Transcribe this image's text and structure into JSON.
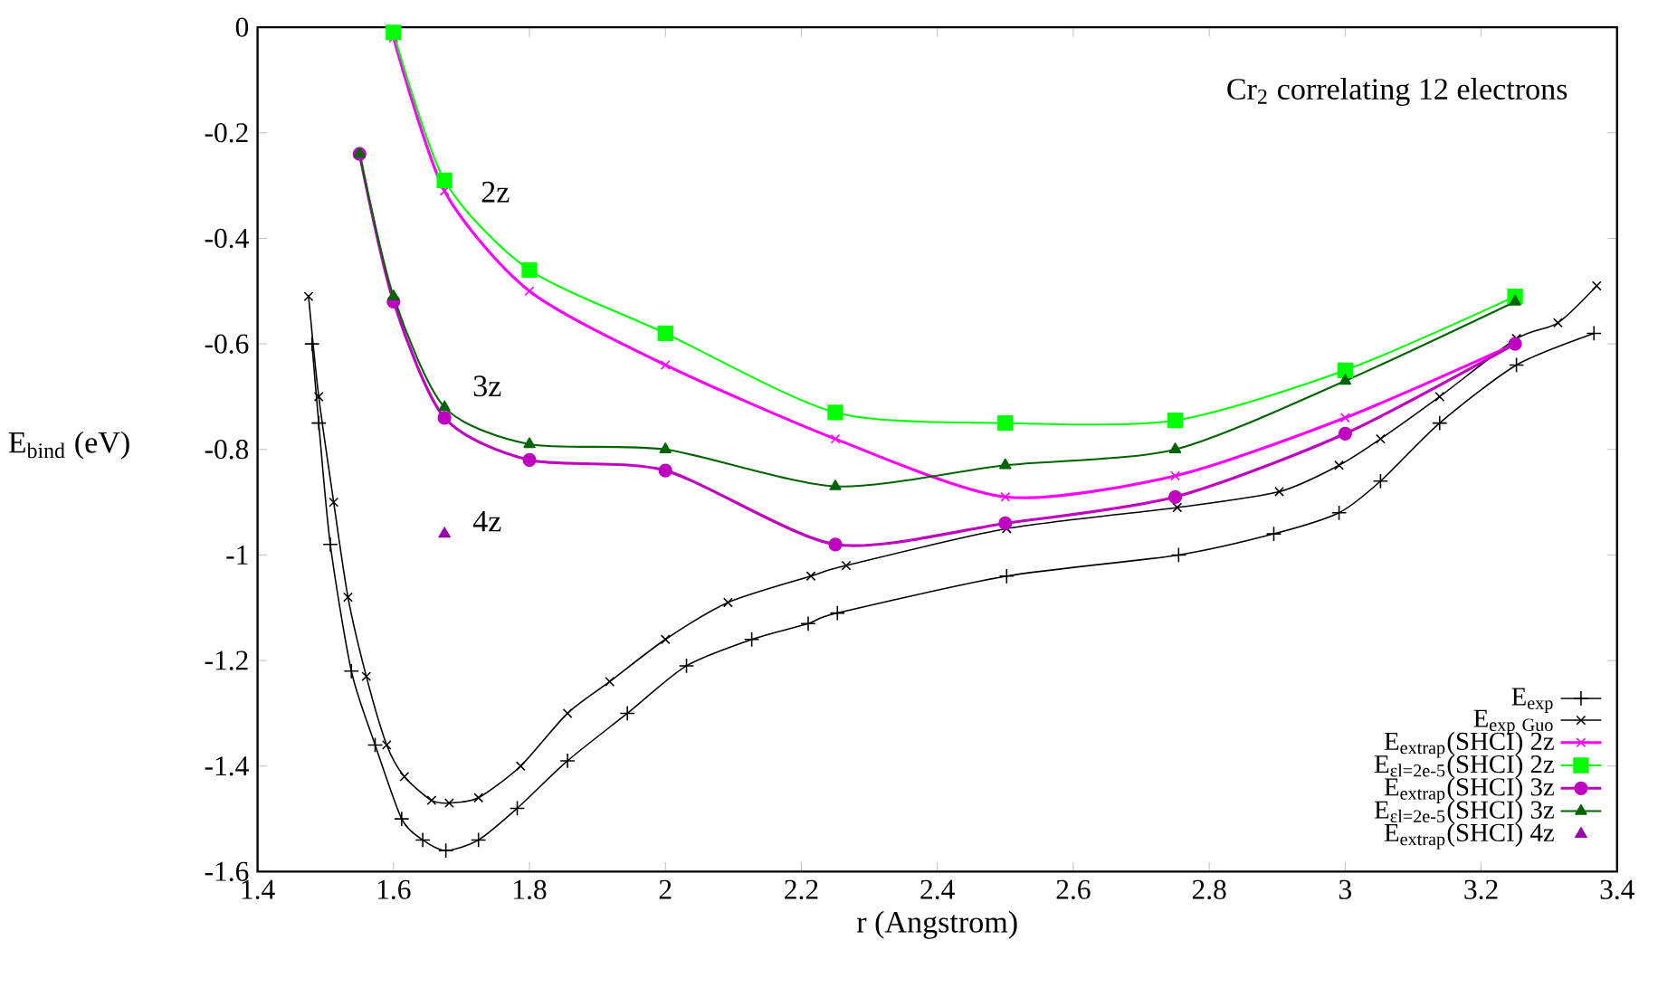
{
  "chart_data": {
    "type": "line",
    "xlabel": "r (Angstrom)",
    "ylabel": "E$_{bind}$ (eV)",
    "xlim": [
      1.4,
      3.4
    ],
    "ylim": [
      -1.6,
      0
    ],
    "xticks": [
      1.4,
      1.6,
      1.8,
      2,
      2.2,
      2.4,
      2.6,
      2.8,
      3,
      3.2,
      3.4
    ],
    "yticks": [
      -1.6,
      -1.4,
      -1.2,
      -1,
      -0.8,
      -0.6,
      -0.4,
      -0.2,
      0
    ],
    "grid": false,
    "legend": "bottom right",
    "annotations": [
      "Cr$_{2}$ correlating 12 electrons",
      "2z",
      "3z",
      "4z"
    ],
    "series": [
      {
        "name": "E$_{exp}$",
        "color": "#000000",
        "marker": "plus",
        "x": [
          1.48,
          1.49,
          1.507,
          1.538,
          1.573,
          1.612,
          1.643,
          1.677,
          1.725,
          1.782,
          1.856,
          1.944,
          2.031,
          2.127,
          2.21,
          2.253,
          2.502,
          2.755,
          2.895,
          2.991,
          3.052,
          3.139,
          3.252,
          3.366
        ],
        "values": [
          -0.6,
          -0.75,
          -0.98,
          -1.22,
          -1.36,
          -1.5,
          -1.54,
          -1.56,
          -1.54,
          -1.48,
          -1.39,
          -1.3,
          -1.21,
          -1.16,
          -1.13,
          -1.11,
          -1.04,
          -1.0,
          -0.96,
          -0.92,
          -0.86,
          -0.75,
          -0.64,
          -0.58
        ]
      },
      {
        "name": "\\mathrm{E}_{\\mathrm{exp\\ Guo}}",
        "color": "#000000",
        "marker": "cross",
        "x": [
          1.475,
          1.49,
          1.512,
          1.533,
          1.56,
          1.59,
          1.616,
          1.656,
          1.682,
          1.725,
          1.787,
          1.856,
          1.918,
          2.0,
          2.092,
          2.214,
          2.266,
          2.502,
          2.753,
          2.903,
          2.991,
          3.052,
          3.139,
          3.252,
          3.313,
          3.37
        ],
        "values": [
          -0.51,
          -0.7,
          -0.9,
          -1.08,
          -1.23,
          -1.36,
          -1.42,
          -1.465,
          -1.47,
          -1.46,
          -1.4,
          -1.3,
          -1.24,
          -1.16,
          -1.09,
          -1.04,
          -1.02,
          -0.95,
          -0.91,
          -0.88,
          -0.83,
          -0.78,
          -0.7,
          -0.59,
          -0.56,
          -0.49
        ]
      },
      {
        "name": "E$_{extrap}$(SHCI) 2z",
        "color": "#ff00ff",
        "marker": "cross",
        "x": [
          1.6,
          1.675,
          1.8,
          2.0,
          2.25,
          2.5,
          2.75,
          3.0,
          3.25
        ],
        "values": [
          -0.02,
          -0.31,
          -0.5,
          -0.64,
          -0.78,
          -0.89,
          -0.85,
          -0.74,
          -0.6
        ]
      },
      {
        "name": "E$_{εl=2e-5}$(SHCI) 2z",
        "color": "#00ff00",
        "marker": "square",
        "x": [
          1.6,
          1.675,
          1.8,
          2.0,
          2.25,
          2.5,
          2.75,
          3.0,
          3.25
        ],
        "values": [
          -0.01,
          -0.29,
          -0.46,
          -0.58,
          -0.73,
          -0.75,
          -0.745,
          -0.65,
          -0.51
        ]
      },
      {
        "name": "E$_{extrap}$(SHCI) 3z",
        "color": "#c000c0",
        "marker": "circle",
        "x": [
          1.55,
          1.6,
          1.675,
          1.8,
          2.0,
          2.25,
          2.5,
          2.75,
          3.0,
          3.25
        ],
        "values": [
          -0.24,
          -0.52,
          -0.74,
          -0.82,
          -0.84,
          -0.98,
          -0.94,
          -0.89,
          -0.77,
          -0.6
        ]
      },
      {
        "name": "E$_{εl=2e-5}$(SHCI) 3z",
        "color": "#006400",
        "marker": "triangle",
        "x": [
          1.55,
          1.6,
          1.675,
          1.8,
          2.0,
          2.25,
          2.5,
          2.75,
          3.0,
          3.25
        ],
        "values": [
          -0.24,
          -0.51,
          -0.72,
          -0.79,
          -0.8,
          -0.87,
          -0.83,
          -0.8,
          -0.67,
          -0.52
        ]
      },
      {
        "name": "E$_{extrap}$(SHCI) 4z",
        "color": "#9900aa",
        "type": "scatter",
        "marker": "triangle",
        "x": [
          1.675
        ],
        "values": [
          -0.96
        ]
      }
    ]
  }
}
